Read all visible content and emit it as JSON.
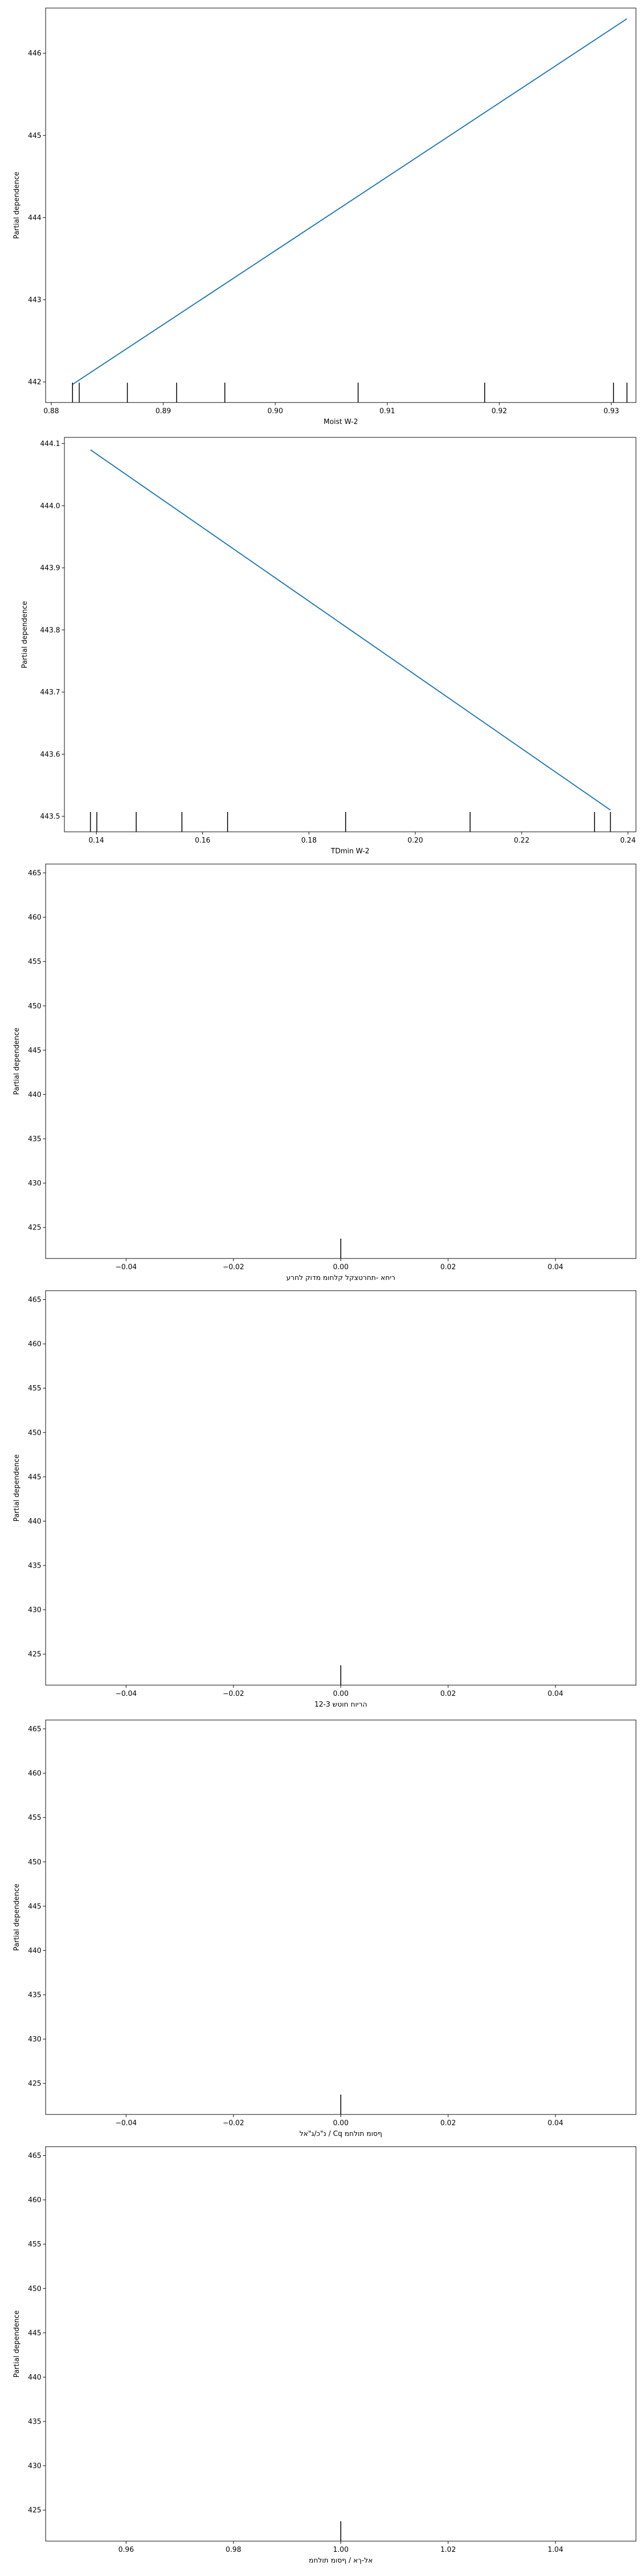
{
  "figure": {
    "colors": {
      "line": "#1f77b4",
      "rug": "#000000",
      "axes": "#000000"
    }
  },
  "chart_data": [
    {
      "type": "line",
      "xlabel": "Moist W-2",
      "ylabel": "Partial dependence",
      "xlim": [
        0.8795,
        0.9322
      ],
      "ylim": [
        441.75,
        446.55
      ],
      "xticks": [
        0.88,
        0.89,
        0.9,
        0.91,
        0.92,
        0.93
      ],
      "xtick_labels": [
        "0.88",
        "0.89",
        "0.90",
        "0.91",
        "0.92",
        "0.93"
      ],
      "yticks": [
        442,
        443,
        444,
        445,
        446
      ],
      "ytick_labels": [
        "442",
        "443",
        "444",
        "445",
        "446"
      ],
      "series": [
        {
          "x": [
            0.8819,
            0.9314
          ],
          "y": [
            441.97,
            446.42
          ]
        }
      ],
      "rug": [
        0.8819,
        0.8825,
        0.8868,
        0.8912,
        0.8955,
        0.9074,
        0.9187,
        0.9302,
        0.9314
      ]
    },
    {
      "type": "line",
      "xlabel": "TDmin W-2",
      "ylabel": "Partial dependence",
      "xlim": [
        0.134,
        0.2415
      ],
      "ylim": [
        443.475,
        444.11
      ],
      "xticks": [
        0.14,
        0.16,
        0.18,
        0.2,
        0.22,
        0.24
      ],
      "xtick_labels": [
        "0.14",
        "0.16",
        "0.18",
        "0.20",
        "0.22",
        "0.24"
      ],
      "yticks": [
        443.5,
        443.6,
        443.7,
        443.8,
        443.9,
        444.0,
        444.1
      ],
      "ytick_labels": [
        "443.5",
        "443.6",
        "443.7",
        "443.8",
        "443.9",
        "444.0",
        "444.1"
      ],
      "series": [
        {
          "x": [
            0.1389,
            0.2367
          ],
          "y": [
            444.09,
            443.51
          ]
        }
      ],
      "rug": [
        0.1389,
        0.1401,
        0.1475,
        0.1561,
        0.1647,
        0.1869,
        0.2103,
        0.2337,
        0.2367
      ]
    },
    {
      "type": "line",
      "xlabel": "ריחא -תחרטצקל קלחומ מדוק לחרע",
      "ylabel": "Partial dependence",
      "xlim": [
        -0.055,
        0.055
      ],
      "ylim": [
        421.5,
        466.0
      ],
      "xticks": [
        -0.04,
        -0.02,
        0.0,
        0.02,
        0.04
      ],
      "xtick_labels": [
        "−0.04",
        "−0.02",
        "0.00",
        "0.02",
        "0.04"
      ],
      "yticks": [
        425,
        430,
        435,
        440,
        445,
        450,
        455,
        460,
        465
      ],
      "ytick_labels": [
        "425",
        "430",
        "435",
        "440",
        "445",
        "450",
        "455",
        "460",
        "465"
      ],
      "series": [],
      "rug": [
        0.0
      ]
    },
    {
      "type": "line",
      "xlabel": "12-3 הריוח חוטש",
      "ylabel": "Partial dependence",
      "xlim": [
        -0.055,
        0.055
      ],
      "ylim": [
        421.5,
        466.0
      ],
      "xticks": [
        -0.04,
        -0.02,
        0.0,
        0.02,
        0.04
      ],
      "xtick_labels": [
        "−0.04",
        "−0.02",
        "0.00",
        "0.02",
        "0.04"
      ],
      "yticks": [
        425,
        430,
        435,
        440,
        445,
        450,
        455,
        460,
        465
      ],
      "ytick_labels": [
        "425",
        "430",
        "435",
        "440",
        "445",
        "450",
        "455",
        "460",
        "465"
      ],
      "series": [],
      "rug": [
        0.0
      ]
    },
    {
      "type": "line",
      "xlabel": "נ\"כ/ג\"אל / Cq ףסומ תולחמ",
      "ylabel": "Partial dependence",
      "xlim": [
        -0.055,
        0.055
      ],
      "ylim": [
        421.5,
        466.0
      ],
      "xticks": [
        -0.04,
        -0.02,
        0.0,
        0.02,
        0.04
      ],
      "xtick_labels": [
        "−0.04",
        "−0.02",
        "0.00",
        "0.02",
        "0.04"
      ],
      "yticks": [
        425,
        430,
        435,
        440,
        445,
        450,
        455,
        460,
        465
      ],
      "ytick_labels": [
        "425",
        "430",
        "435",
        "440",
        "445",
        "450",
        "455",
        "460",
        "465"
      ],
      "series": [],
      "rug": [
        0.0
      ]
    },
    {
      "type": "line",
      "xlabel": "אל-ךא / ףסומ תולחמ",
      "ylabel": "Partial dependence",
      "xlim": [
        0.945,
        1.055
      ],
      "ylim": [
        421.5,
        466.0
      ],
      "xticks": [
        0.96,
        0.98,
        1.0,
        1.02,
        1.04
      ],
      "xtick_labels": [
        "0.96",
        "0.98",
        "1.00",
        "1.02",
        "1.04"
      ],
      "yticks": [
        425,
        430,
        435,
        440,
        445,
        450,
        455,
        460,
        465
      ],
      "ytick_labels": [
        "425",
        "430",
        "435",
        "440",
        "445",
        "450",
        "455",
        "460",
        "465"
      ],
      "series": [],
      "rug": [
        1.0
      ]
    }
  ]
}
